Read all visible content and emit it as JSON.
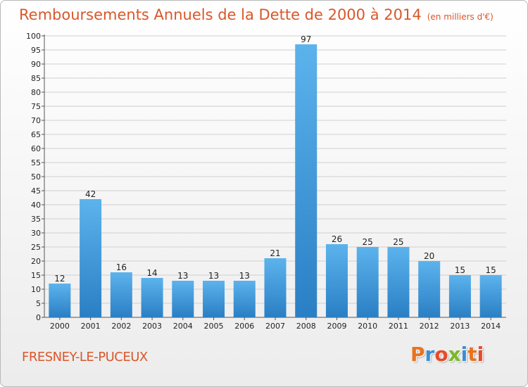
{
  "header": {
    "title": "Remboursements Annuels de la Dette de 2000 à 2014",
    "unit": "(en milliers d'€)"
  },
  "footer": {
    "commune": "FRESNEY-LE-PUCEUX",
    "logo_text": "Proxiti",
    "logo_colors": [
      "#e8731e",
      "#3a8fd6",
      "#e84a2a",
      "#7ab929",
      "#3a8fd6",
      "#e8731e",
      "#e84a2a"
    ]
  },
  "colors": {
    "title": "#d9572a",
    "bar_top": "#5cb3ec",
    "bar_bottom": "#2a7fc4",
    "grid": "#cfcfcf"
  },
  "chart_data": {
    "type": "bar",
    "title": "Remboursements Annuels de la Dette de 2000 à 2014",
    "unit": "(en milliers d'€)",
    "categories": [
      "2000",
      "2001",
      "2002",
      "2003",
      "2004",
      "2005",
      "2006",
      "2007",
      "2008",
      "2009",
      "2010",
      "2011",
      "2012",
      "2013",
      "2014"
    ],
    "values": [
      12,
      42,
      16,
      14,
      13,
      13,
      13,
      21,
      97,
      26,
      25,
      25,
      20,
      15,
      15
    ],
    "ylim": [
      0,
      100
    ],
    "ytick_step": 5,
    "grid": true,
    "legend": "none"
  }
}
